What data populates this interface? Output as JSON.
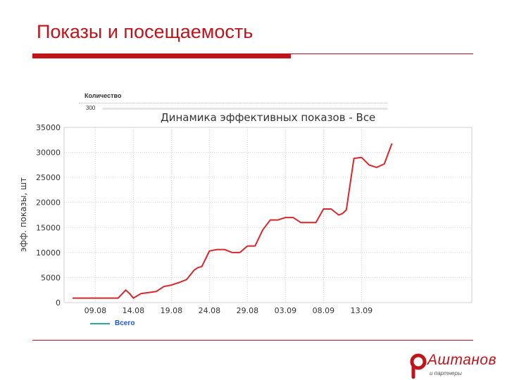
{
  "slide": {
    "title": "Показы и посещаемость"
  },
  "header": {
    "quantity_label": "Количество",
    "quantity_value": "300"
  },
  "legend": {
    "label": "Всего",
    "color": "#2ba9a0"
  },
  "brand": {
    "name": "Аштанов",
    "sub": "и партнеры",
    "color": "#c0131a"
  },
  "chart_data": {
    "type": "line",
    "title": "Динамика эффективных показов - Все",
    "ylabel": "эфф. показы, шт",
    "ylim": [
      0,
      35000
    ],
    "yticks": [
      0,
      5000,
      10000,
      15000,
      20000,
      25000,
      30000,
      35000
    ],
    "xtick_labels": [
      "09.08",
      "14.08",
      "19.08",
      "24.08",
      "29.08",
      "03.09",
      "08.09",
      "13.09"
    ],
    "xtick_days": [
      3,
      8,
      13,
      18,
      23,
      28,
      33,
      38
    ],
    "grid": true,
    "line_color": "#d9262b",
    "series": [
      {
        "name": "Всего",
        "x": [
          0,
          1,
          2,
          3,
          4,
          5,
          6,
          7,
          7.5,
          8,
          9,
          10,
          11,
          12,
          13,
          14,
          15,
          16,
          16.5,
          17,
          18,
          19,
          20,
          21,
          22,
          23,
          24,
          25,
          26,
          27,
          28,
          29,
          30,
          31,
          32,
          33,
          34,
          35,
          35.5,
          36,
          37,
          38,
          39,
          40,
          41,
          42
        ],
        "y": [
          900,
          900,
          900,
          900,
          900,
          900,
          900,
          2500,
          1800,
          900,
          1800,
          2000,
          2200,
          3200,
          3500,
          4000,
          4600,
          6500,
          7000,
          7200,
          10300,
          10600,
          10600,
          10000,
          10000,
          11300,
          11300,
          14500,
          16500,
          16500,
          17000,
          17000,
          16000,
          16000,
          16000,
          18700,
          18700,
          17500,
          17800,
          18500,
          28800,
          29000,
          27500,
          27000,
          27700,
          31800
        ]
      }
    ]
  }
}
